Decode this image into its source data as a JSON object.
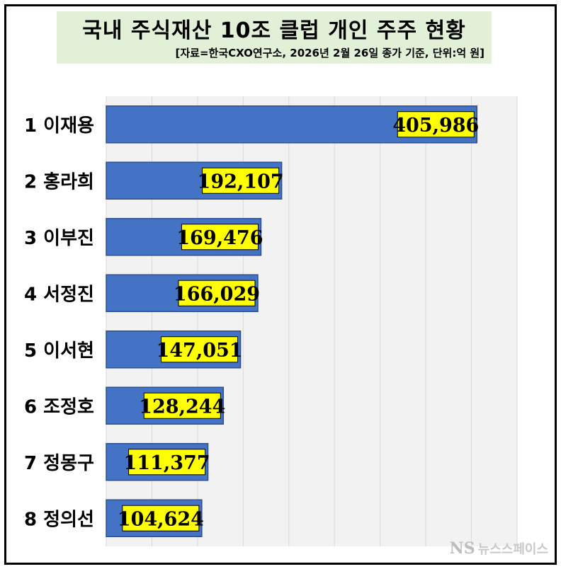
{
  "header": {
    "title": "국내 주식재산 10조 클럽 개인 주주 현황",
    "subtitle": "[자료=한국CXO연구소, 2026년 2월 26일 종가 기준, 단위:억 원]"
  },
  "watermark": {
    "logo": "NS",
    "text": "뉴스스페이스"
  },
  "chart_data": {
    "type": "bar",
    "orientation": "horizontal",
    "title": "국내 주식재산 10조 클럽 개인 주주 현황",
    "subtitle": "[자료=한국CXO연구소, 2026년 2월 26일 종가 기준, 단위:억 원]",
    "categories": [
      "1 이재용",
      "2 홍라희",
      "3 이부진",
      "4 서정진",
      "5 이서현",
      "6 조정호",
      "7 정몽구",
      "8 정의선"
    ],
    "values": [
      405986,
      192107,
      169476,
      166029,
      147051,
      128244,
      111377,
      104624
    ],
    "value_labels": [
      "405,986",
      "192,107",
      "169,476",
      "166,029",
      "147,051",
      "128,244",
      "111,377",
      "104,624"
    ],
    "xlim": [
      0,
      450000
    ],
    "grid": true,
    "legend": "none",
    "colors": {
      "bar": "#4472c4",
      "bar_edge": "#2f4f8f",
      "label_bg": "#ffff00",
      "plot_bg": "#f2f2f2",
      "grid": "#d9d9d9"
    }
  }
}
